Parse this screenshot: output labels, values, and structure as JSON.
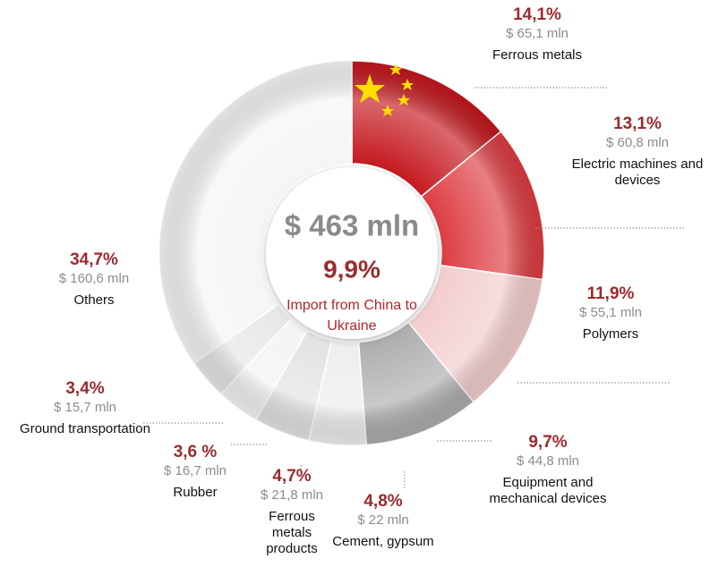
{
  "chart_data": {
    "type": "donut",
    "center_title": "$ 463 mln",
    "center_share": "9,9%",
    "center_caption": "Import from China to Ukraine",
    "categories": [
      "Ferrous metals",
      "Electric machines and devices",
      "Polymers",
      "Equipment and mechanical devices",
      "Cement, gypsum",
      "Ferrous metals products",
      "Rubber",
      "Ground transportation",
      "Others"
    ],
    "values": [
      14.1,
      13.1,
      11.9,
      9.7,
      4.8,
      4.7,
      3.6,
      3.4,
      34.7
    ],
    "value_labels": [
      "14,1%",
      "13,1%",
      "11,9%",
      "9,7%",
      "4,8%",
      "4,7%",
      "3,6 %",
      "3,4%",
      "34,7%"
    ],
    "amounts": [
      65.1,
      60.8,
      55.1,
      44.8,
      22,
      21.8,
      16.7,
      15.7,
      160.6
    ],
    "amount_labels": [
      "$ 65,1 mln",
      "$ 60,8 mln",
      "$ 55,1 mln",
      "$ 44,8 mln",
      "$ 22 mln",
      "$ 21,8 mln",
      "$ 16,7 mln",
      "$ 15,7 mln",
      "$ 160,6 mln"
    ],
    "colors": [
      "#c3161c",
      "#dc3a3f",
      "#f2cccc",
      "#acacac",
      "#ededed",
      "#e2e2e2",
      "#f3f3f3",
      "#e6e6e6",
      "#f5f5f5"
    ]
  }
}
